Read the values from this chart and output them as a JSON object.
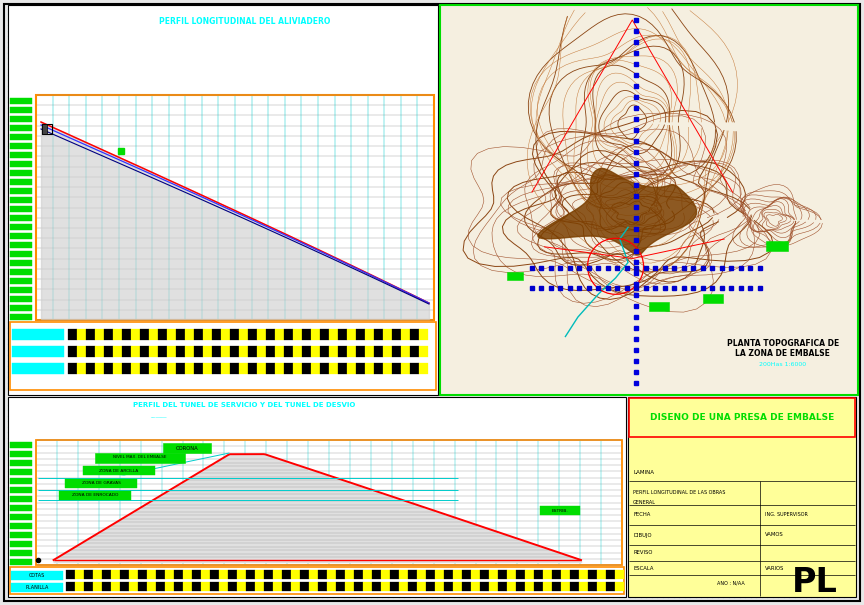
{
  "bg_color": "#e8e8e8",
  "paper_color": "#e8e8e8",
  "panel_bg": "#ffffff",
  "cyan_color": "#00ffff",
  "green_color": "#00dd00",
  "orange_color": "#ff8c00",
  "red_color": "#ff0000",
  "blue_color": "#0000cc",
  "dark_blue": "#000080",
  "brown_color": "#8B4513",
  "yellow_color": "#ffff00",
  "black": "#000000",
  "title_top": "PERFIL LONGITUDINAL DEL ALIVIADERO",
  "title_mid": "PERFIL DEL TUNEL DE SERVICIO Y DEL TUNEL DE DESVIO",
  "title_map_line1": "PLANTA TOPOGRAFICA DE",
  "title_map_line2": "LA ZONA DE EMBALSE",
  "title_scale": "200Has 1:6000",
  "main_title": "DISENO DE UNA PRESA DE EMBALSE",
  "label_PL": "PL",
  "lam_label": "LAMINA",
  "sub_label": "PERFIL LONGITUDINAL DE LAS OBRAS",
  "sub_label2": "GENERAL",
  "fecha": "FECHA",
  "dibujo": "DIBUJO",
  "reviso": "REVISO",
  "escala": "ESCALA",
  "ing_sup": "ING. SUPERVISOR",
  "vamos_val": "VAMOS",
  "varios_val": "VARIOS",
  "ano_val": "ANO : N/AA"
}
